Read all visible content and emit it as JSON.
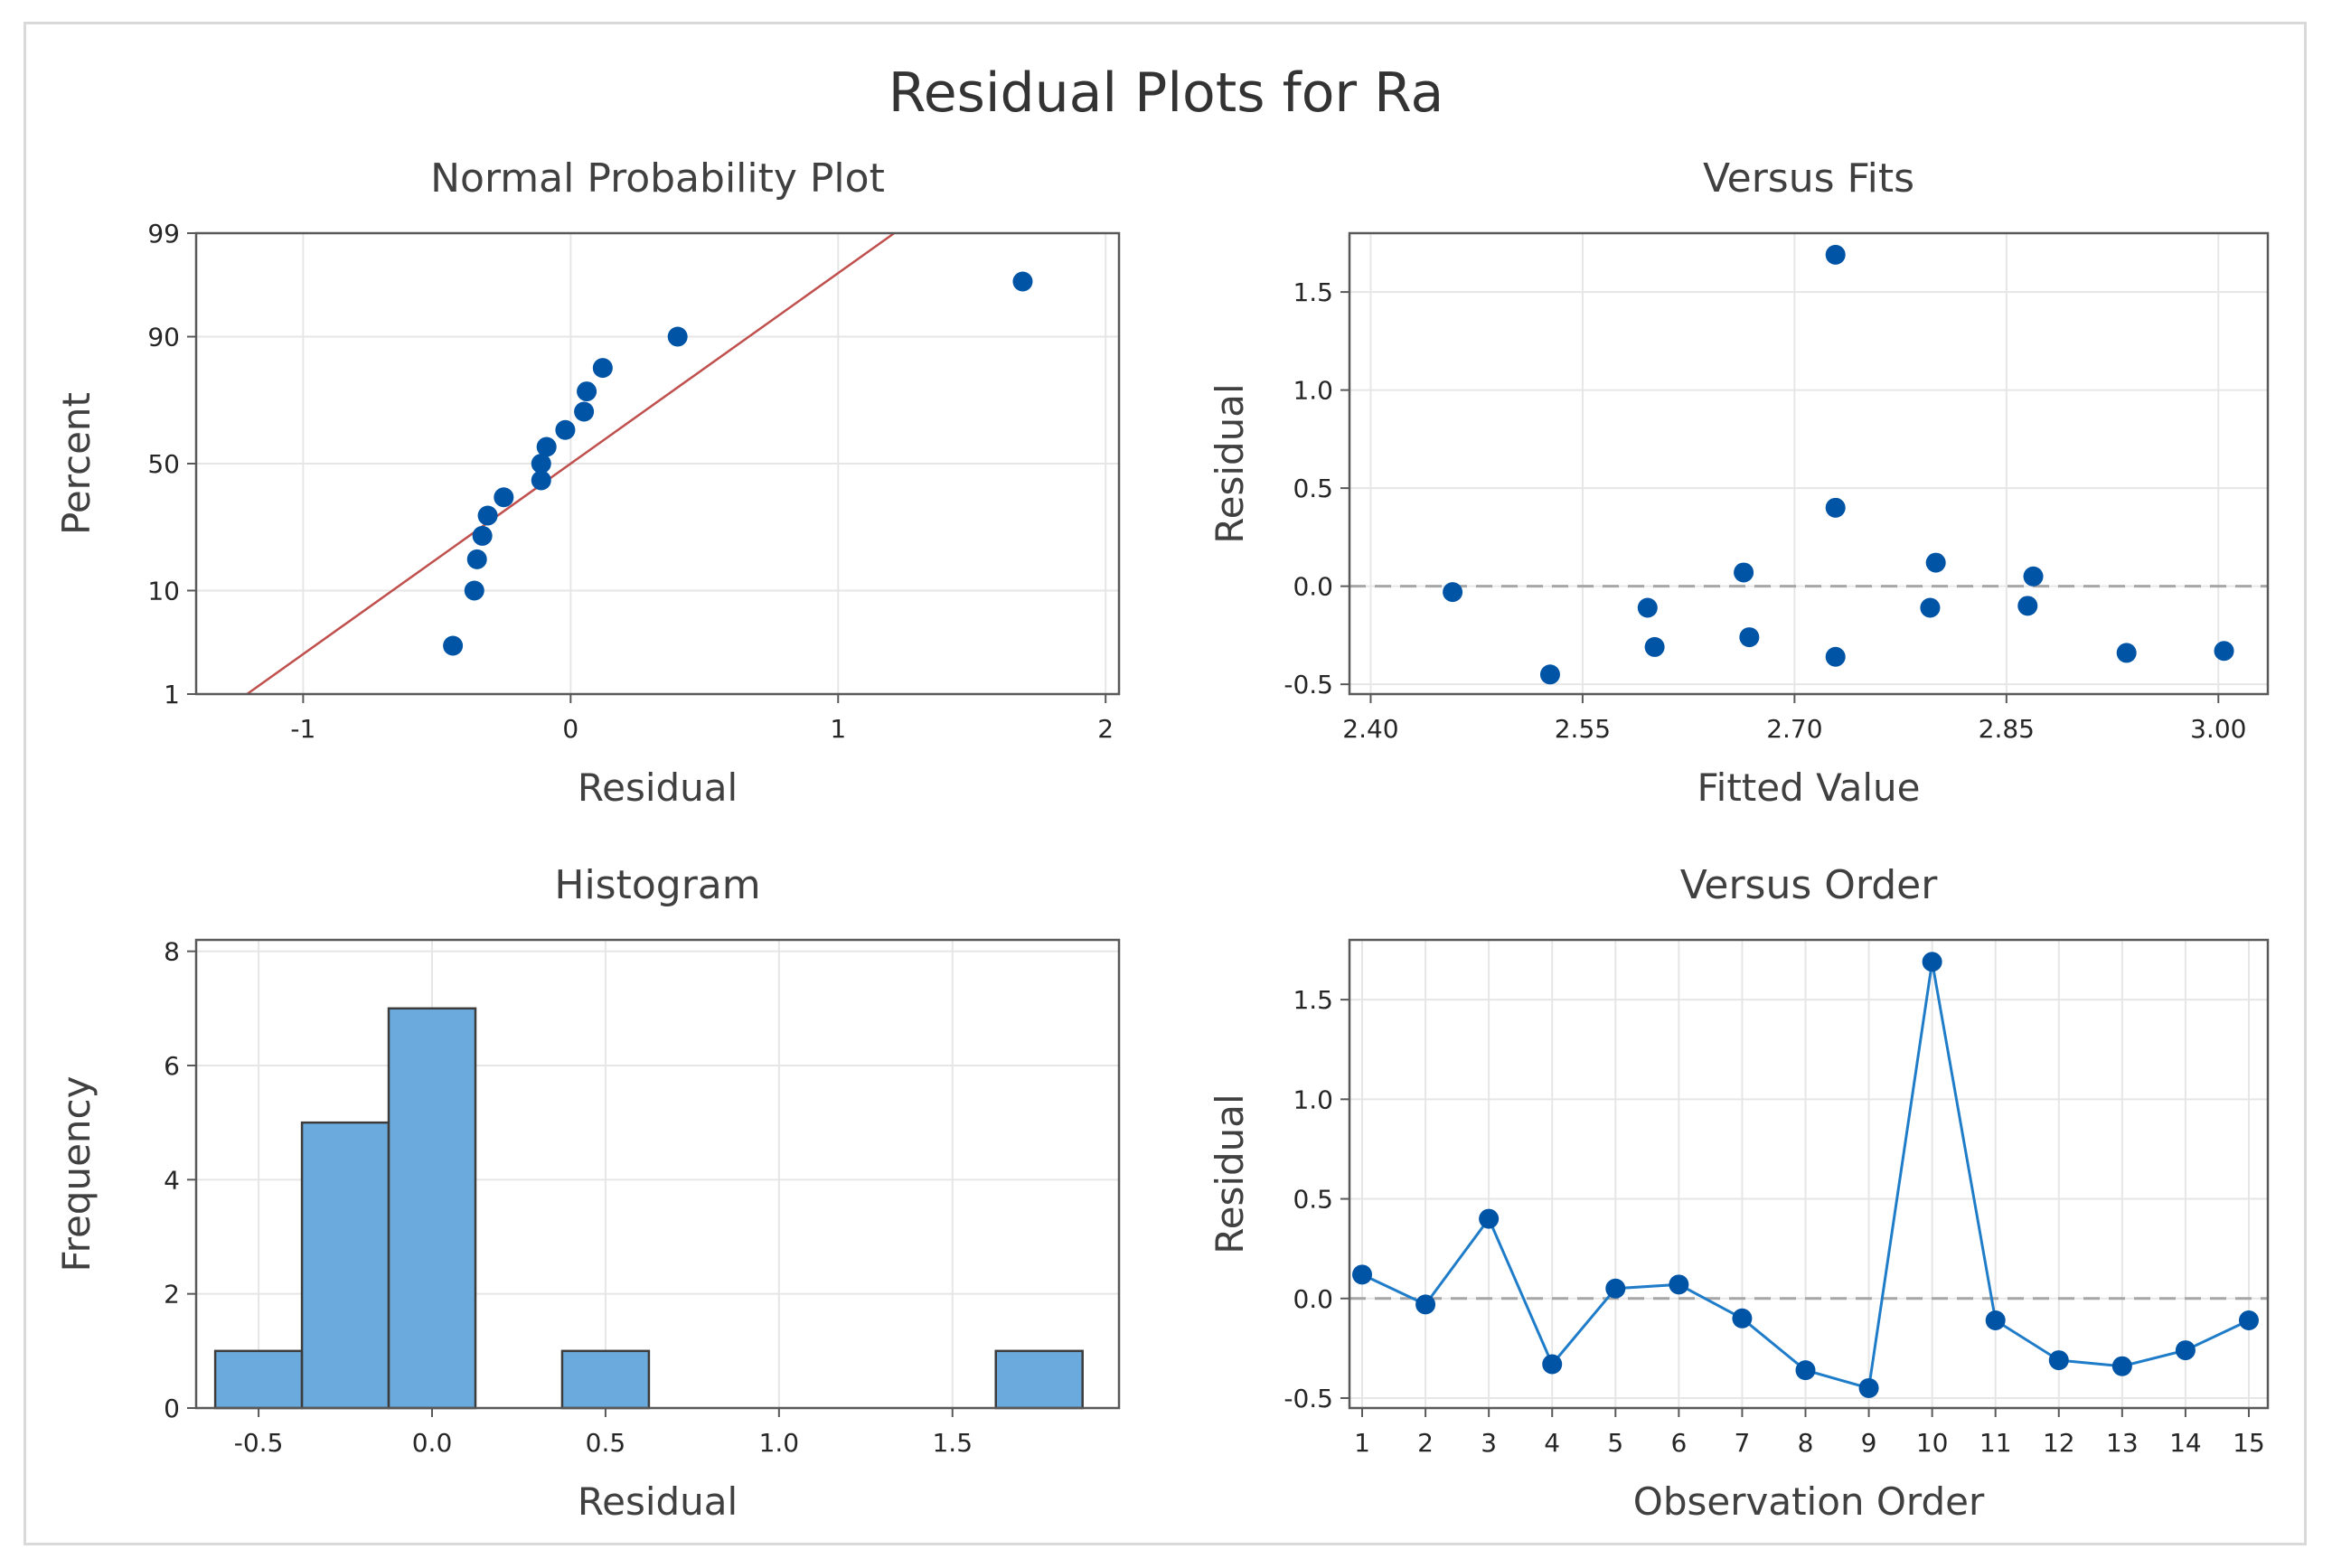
{
  "title": "Residual Plots for Ra",
  "colors": {
    "marker": "#0054a6",
    "fit_line": "#c0504d",
    "bar_fill": "#6aaadd",
    "bar_edge": "#3c3c3c",
    "order_line": "#1f7cc9",
    "grid": "#e6e6e6",
    "zero_line": "#a6a6a6"
  },
  "chart_data": [
    {
      "id": "normal-probability",
      "type": "scatter",
      "title": "Normal Probability Plot",
      "xlabel": "Residual",
      "ylabel": "Percent",
      "xlim": [
        -1.4,
        2.05
      ],
      "xticks": [
        -1,
        0,
        1,
        2
      ],
      "xtick_labels": [
        "-1",
        "0",
        "1",
        "2"
      ],
      "yticks": [
        1,
        10,
        50,
        90,
        99
      ],
      "ytick_labels": [
        "1",
        "10",
        "50",
        "90",
        "99"
      ],
      "yscale": "normal-probability",
      "ylim_percent": [
        1,
        99
      ],
      "fit_line": {
        "mean": 0.0,
        "sd": 0.52
      },
      "points": [
        {
          "x": -0.44,
          "y": 3.3
        },
        {
          "x": -0.36,
          "y": 10.0
        },
        {
          "x": -0.35,
          "y": 16.7
        },
        {
          "x": -0.33,
          "y": 23.3
        },
        {
          "x": -0.31,
          "y": 30.0
        },
        {
          "x": -0.25,
          "y": 36.7
        },
        {
          "x": -0.11,
          "y": 43.3
        },
        {
          "x": -0.11,
          "y": 50.0
        },
        {
          "x": -0.09,
          "y": 56.7
        },
        {
          "x": -0.02,
          "y": 63.3
        },
        {
          "x": 0.05,
          "y": 70.0
        },
        {
          "x": 0.06,
          "y": 76.7
        },
        {
          "x": 0.12,
          "y": 83.3
        },
        {
          "x": 0.4,
          "y": 90.0
        },
        {
          "x": 1.69,
          "y": 96.7
        }
      ]
    },
    {
      "id": "versus-fits",
      "type": "scatter",
      "title": "Versus Fits",
      "xlabel": "Fitted Value",
      "ylabel": "Residual",
      "xlim": [
        2.385,
        3.035
      ],
      "ylim": [
        -0.55,
        1.8
      ],
      "xticks": [
        2.4,
        2.55,
        2.7,
        2.85,
        3.0
      ],
      "xtick_labels": [
        "2.40",
        "2.55",
        "2.70",
        "2.85",
        "3.00"
      ],
      "yticks": [
        -0.5,
        0.0,
        0.5,
        1.0,
        1.5
      ],
      "ytick_labels": [
        "-0.5",
        "0.0",
        "0.5",
        "1.0",
        "1.5"
      ],
      "reference_line": 0.0,
      "points": [
        {
          "x": 2.458,
          "y": -0.03
        },
        {
          "x": 2.527,
          "y": -0.45
        },
        {
          "x": 2.596,
          "y": -0.11
        },
        {
          "x": 2.601,
          "y": -0.31
        },
        {
          "x": 2.664,
          "y": 0.07
        },
        {
          "x": 2.668,
          "y": -0.26
        },
        {
          "x": 2.729,
          "y": 1.69
        },
        {
          "x": 2.729,
          "y": 0.4
        },
        {
          "x": 2.729,
          "y": -0.36
        },
        {
          "x": 2.796,
          "y": -0.11
        },
        {
          "x": 2.8,
          "y": 0.12
        },
        {
          "x": 2.865,
          "y": -0.1
        },
        {
          "x": 2.869,
          "y": 0.05
        },
        {
          "x": 2.935,
          "y": -0.34
        },
        {
          "x": 3.004,
          "y": -0.33
        }
      ]
    },
    {
      "id": "histogram",
      "type": "bar",
      "title": "Histogram",
      "xlabel": "Residual",
      "ylabel": "Frequency",
      "xlim": [
        -0.68,
        1.98
      ],
      "ylim": [
        0,
        8.2
      ],
      "xticks": [
        -0.5,
        0.0,
        0.5,
        1.0,
        1.5
      ],
      "xtick_labels": [
        "-0.5",
        "0.0",
        "0.5",
        "1.0",
        "1.5"
      ],
      "yticks": [
        0,
        2,
        4,
        6,
        8
      ],
      "ytick_labels": [
        "0",
        "2",
        "4",
        "6",
        "8"
      ],
      "bin_width": 0.25,
      "bins": [
        {
          "center": -0.5,
          "count": 1
        },
        {
          "center": -0.25,
          "count": 5
        },
        {
          "center": 0.0,
          "count": 7
        },
        {
          "center": 0.5,
          "count": 1
        },
        {
          "center": 1.75,
          "count": 1
        }
      ]
    },
    {
      "id": "versus-order",
      "type": "line",
      "title": "Versus Order",
      "xlabel": "Observation Order",
      "ylabel": "Residual",
      "xlim": [
        0.8,
        15.3
      ],
      "ylim": [
        -0.55,
        1.8
      ],
      "xticks": [
        1,
        2,
        3,
        4,
        5,
        6,
        7,
        8,
        9,
        10,
        11,
        12,
        13,
        14,
        15
      ],
      "xtick_labels": [
        "1",
        "2",
        "3",
        "4",
        "5",
        "6",
        "7",
        "8",
        "9",
        "10",
        "11",
        "12",
        "13",
        "14",
        "15"
      ],
      "yticks": [
        -0.5,
        0.0,
        0.5,
        1.0,
        1.5
      ],
      "ytick_labels": [
        "-0.5",
        "0.0",
        "0.5",
        "1.0",
        "1.5"
      ],
      "reference_line": 0.0,
      "x": [
        1,
        2,
        3,
        4,
        5,
        6,
        7,
        8,
        9,
        10,
        11,
        12,
        13,
        14,
        15
      ],
      "values": [
        0.12,
        -0.03,
        0.4,
        -0.33,
        0.05,
        0.07,
        -0.1,
        -0.36,
        -0.45,
        1.69,
        -0.11,
        -0.31,
        -0.34,
        -0.26,
        -0.11
      ]
    }
  ]
}
